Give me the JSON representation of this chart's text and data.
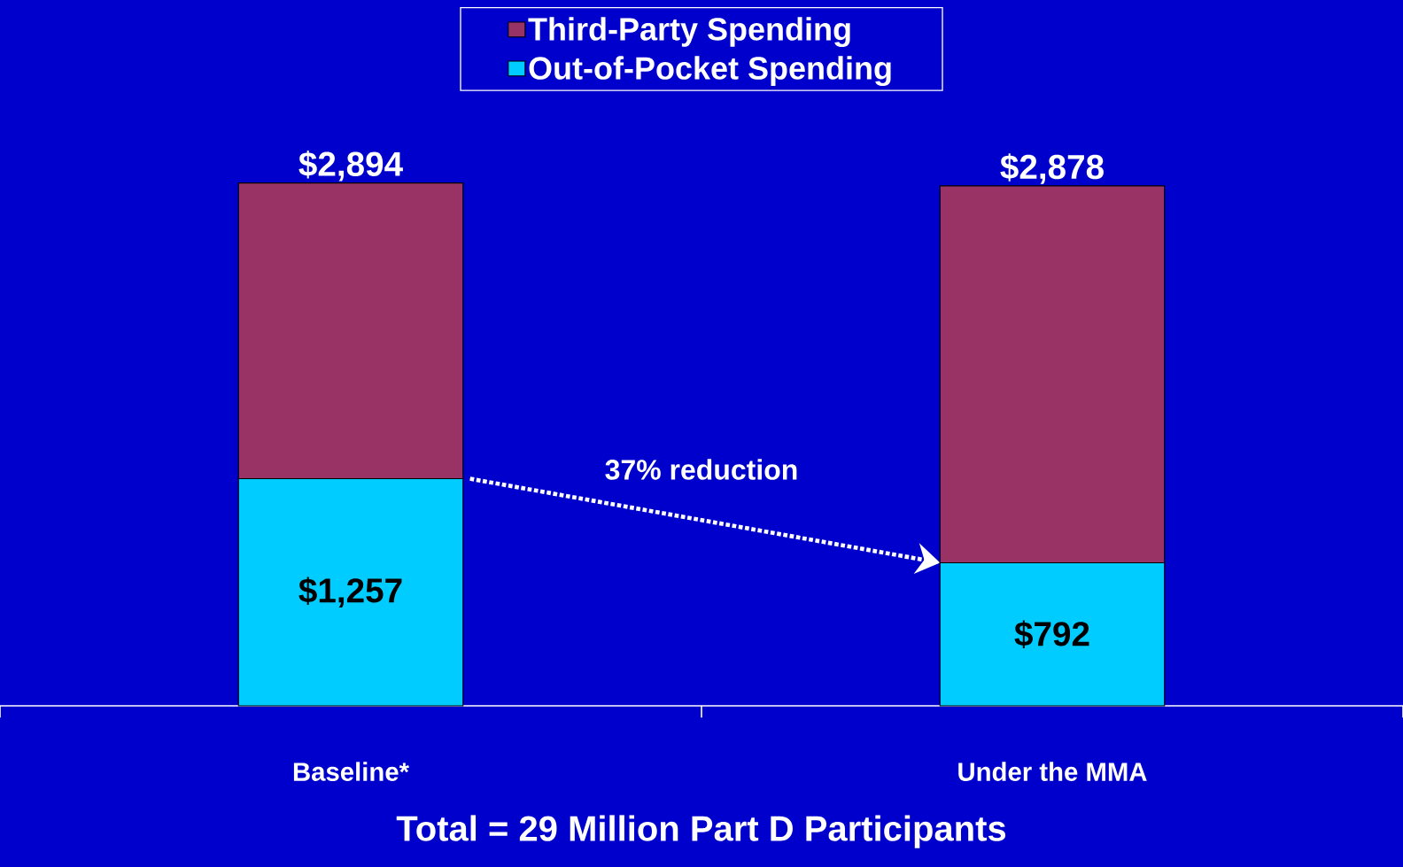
{
  "chart_data": {
    "type": "bar",
    "stacked": true,
    "categories": [
      "Baseline*",
      "Under the MMA"
    ],
    "series": [
      {
        "name": "Out-of-Pocket Spending",
        "color": "#00ccff",
        "values": [
          1257,
          792
        ],
        "value_labels": [
          "$1,257",
          "$792"
        ]
      },
      {
        "name": "Third-Party Spending",
        "color": "#993366",
        "values": [
          1637,
          2086
        ]
      }
    ],
    "totals": [
      "$2,894",
      "$2,878"
    ],
    "tick_labels": "x",
    "legend": "top",
    "xlabel": "Total = 29 Million Part D Participants",
    "annotations": [
      "37% reduction"
    ]
  }
}
